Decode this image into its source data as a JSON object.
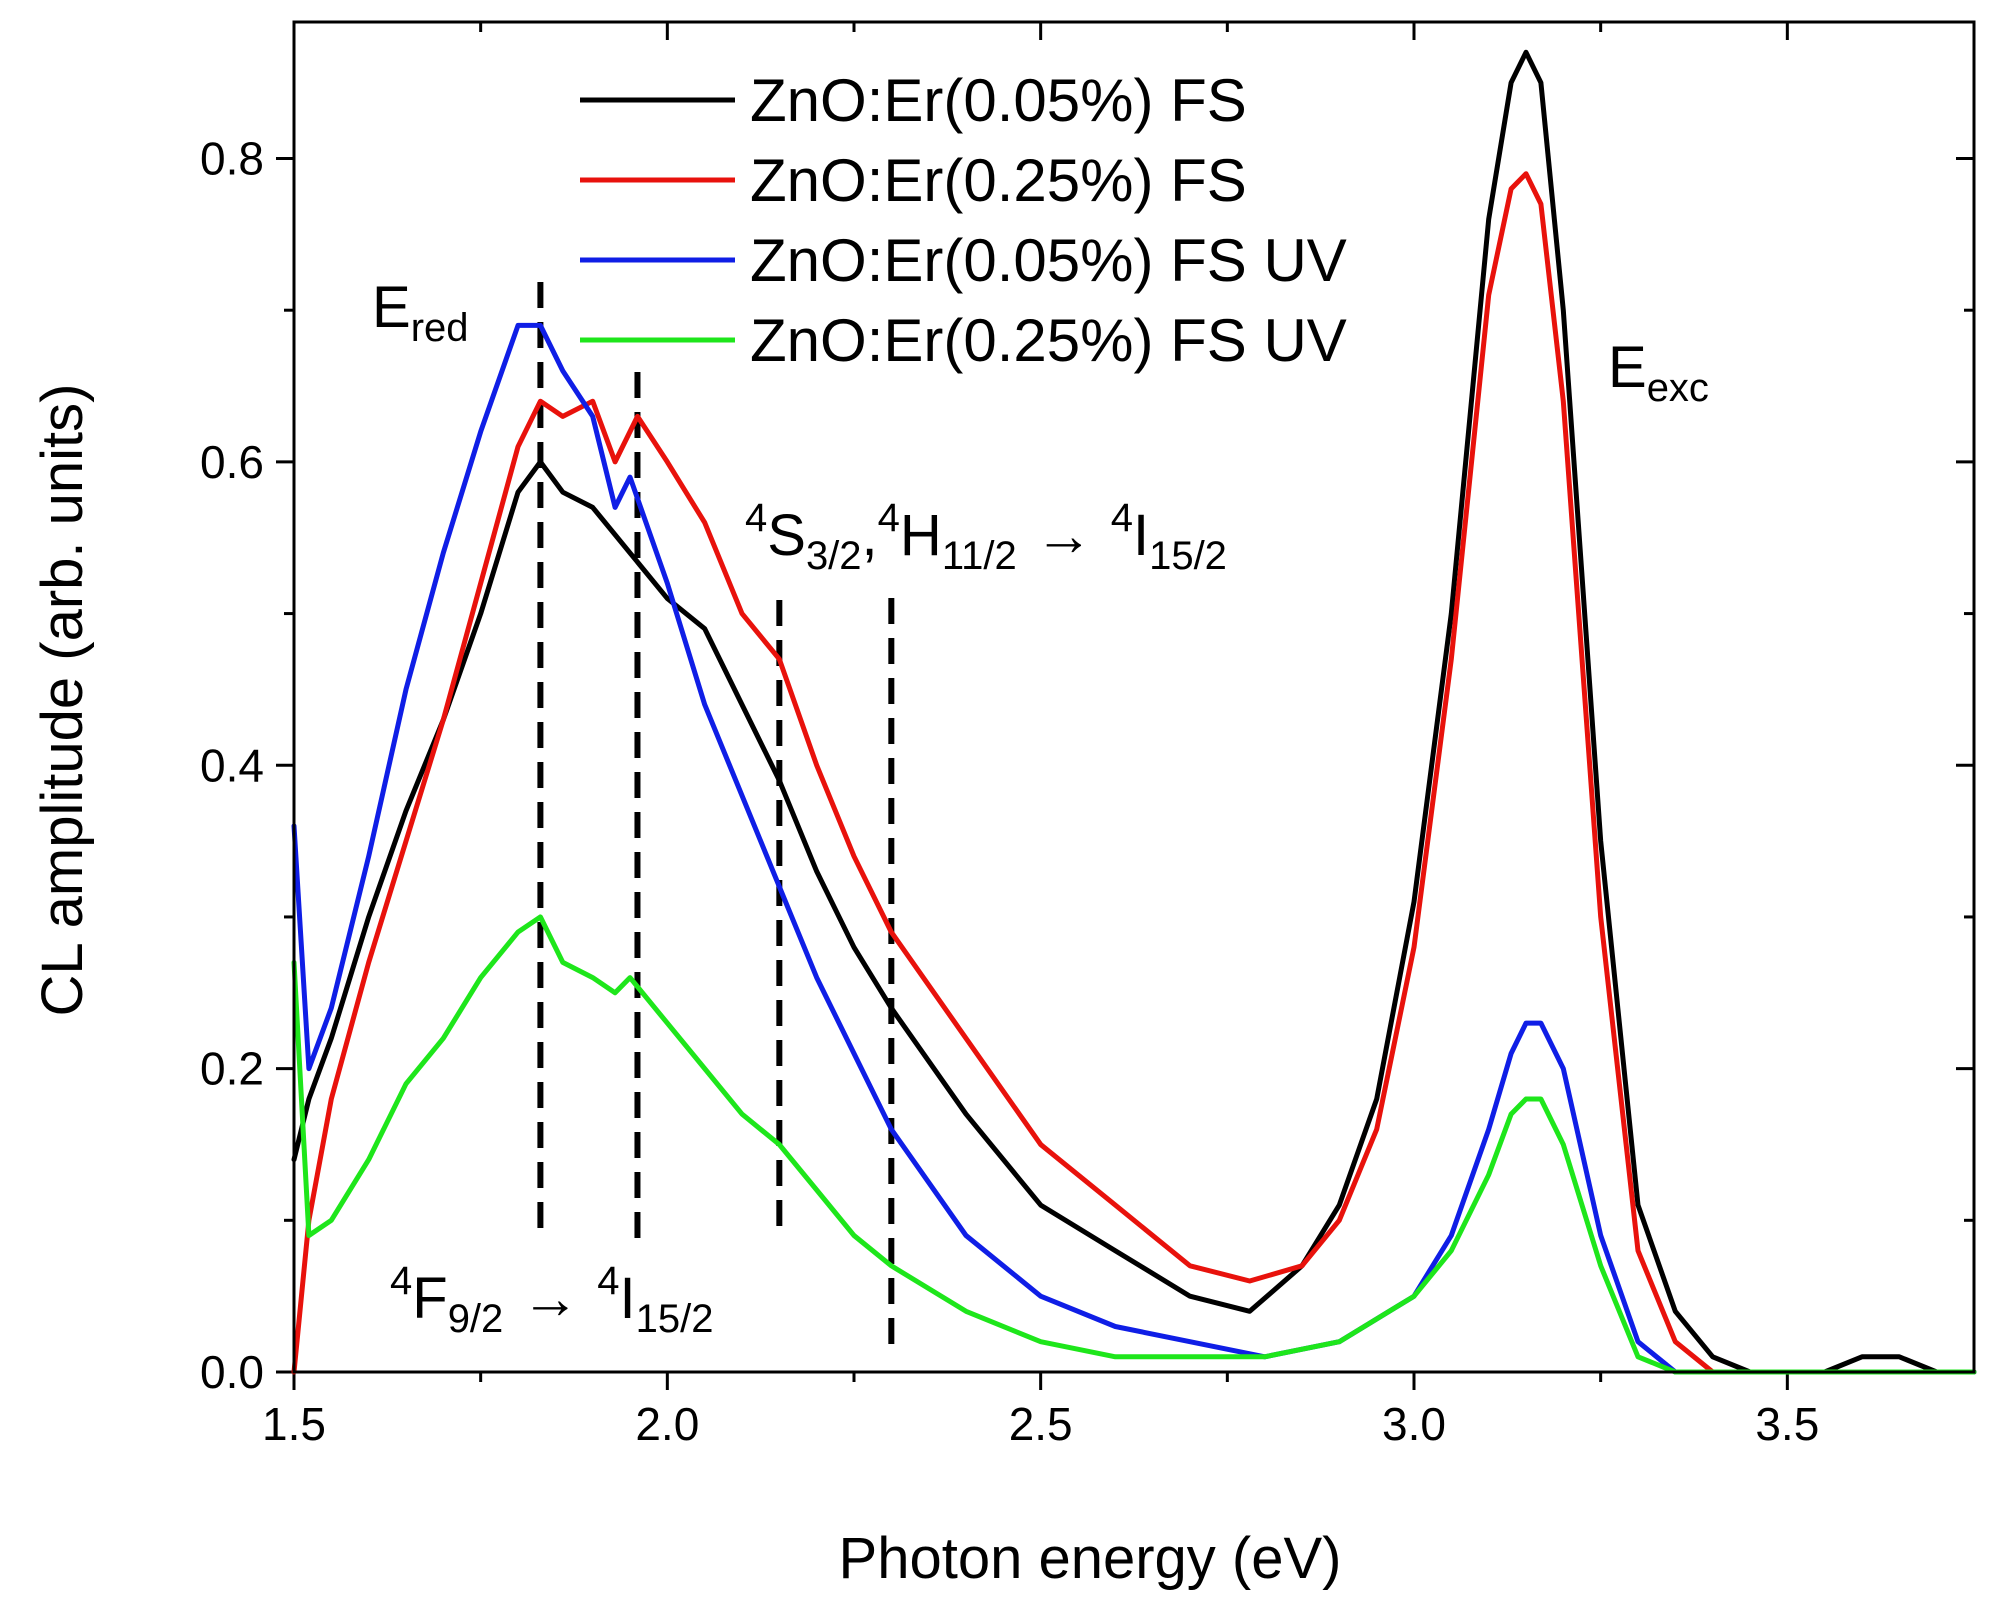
{
  "chart_data": {
    "type": "line",
    "xlabel": "Photon energy (eV)",
    "ylabel": "CL amplitude (arb. units)",
    "xlim": [
      1.5,
      3.75
    ],
    "ylim": [
      0.0,
      0.89
    ],
    "x_ticks": [
      1.5,
      2.0,
      2.5,
      3.0,
      3.5
    ],
    "x_tick_labels": [
      "1.5",
      "2.0",
      "2.5",
      "3.0",
      "3.5"
    ],
    "y_ticks": [
      0.0,
      0.2,
      0.4,
      0.6,
      0.8
    ],
    "y_tick_labels": [
      "0.0",
      "0.2",
      "0.4",
      "0.6",
      "0.8"
    ],
    "grid": false,
    "legend_position": "top-center",
    "series": [
      {
        "name": "ZnO:Er(0.05%) FS",
        "color": "#000000",
        "x": [
          1.5,
          1.52,
          1.55,
          1.6,
          1.65,
          1.7,
          1.75,
          1.8,
          1.83,
          1.86,
          1.9,
          1.95,
          2.0,
          2.05,
          2.1,
          2.15,
          2.2,
          2.25,
          2.3,
          2.4,
          2.5,
          2.6,
          2.7,
          2.78,
          2.85,
          2.9,
          2.95,
          3.0,
          3.05,
          3.1,
          3.13,
          3.15,
          3.17,
          3.2,
          3.25,
          3.3,
          3.35,
          3.4,
          3.45,
          3.5,
          3.55,
          3.6,
          3.65,
          3.7,
          3.75
        ],
        "values": [
          0.14,
          0.18,
          0.22,
          0.3,
          0.37,
          0.43,
          0.5,
          0.58,
          0.6,
          0.58,
          0.57,
          0.54,
          0.51,
          0.49,
          0.44,
          0.39,
          0.33,
          0.28,
          0.24,
          0.17,
          0.11,
          0.08,
          0.05,
          0.04,
          0.07,
          0.11,
          0.18,
          0.31,
          0.5,
          0.76,
          0.85,
          0.87,
          0.85,
          0.7,
          0.35,
          0.11,
          0.04,
          0.01,
          0.0,
          0.0,
          0.0,
          0.01,
          0.01,
          0.0,
          0.0
        ]
      },
      {
        "name": "ZnO:Er(0.25%) FS",
        "color": "#e8120c",
        "x": [
          1.5,
          1.52,
          1.55,
          1.6,
          1.65,
          1.7,
          1.75,
          1.8,
          1.83,
          1.86,
          1.9,
          1.93,
          1.96,
          2.0,
          2.05,
          2.1,
          2.15,
          2.2,
          2.25,
          2.3,
          2.4,
          2.5,
          2.6,
          2.7,
          2.78,
          2.85,
          2.9,
          2.95,
          3.0,
          3.05,
          3.1,
          3.13,
          3.15,
          3.17,
          3.2,
          3.25,
          3.3,
          3.35,
          3.4,
          3.45,
          3.5,
          3.55,
          3.6,
          3.65,
          3.7,
          3.75
        ],
        "values": [
          0.0,
          0.1,
          0.18,
          0.27,
          0.35,
          0.43,
          0.52,
          0.61,
          0.64,
          0.63,
          0.64,
          0.6,
          0.63,
          0.6,
          0.56,
          0.5,
          0.47,
          0.4,
          0.34,
          0.29,
          0.22,
          0.15,
          0.11,
          0.07,
          0.06,
          0.07,
          0.1,
          0.16,
          0.28,
          0.47,
          0.71,
          0.78,
          0.79,
          0.77,
          0.64,
          0.3,
          0.08,
          0.02,
          0.0,
          0.0,
          0.0,
          0.0,
          0.0,
          0.0,
          0.0,
          0.0
        ]
      },
      {
        "name": "ZnO:Er(0.05%) FS UV",
        "color": "#0f1ee6",
        "x": [
          1.5,
          1.52,
          1.55,
          1.6,
          1.65,
          1.7,
          1.75,
          1.8,
          1.83,
          1.86,
          1.9,
          1.93,
          1.95,
          2.0,
          2.05,
          2.1,
          2.15,
          2.2,
          2.25,
          2.3,
          2.4,
          2.5,
          2.6,
          2.7,
          2.8,
          2.9,
          3.0,
          3.05,
          3.1,
          3.13,
          3.15,
          3.17,
          3.2,
          3.25,
          3.3,
          3.35,
          3.4,
          3.5,
          3.6,
          3.7,
          3.75
        ],
        "values": [
          0.36,
          0.2,
          0.24,
          0.34,
          0.45,
          0.54,
          0.62,
          0.69,
          0.69,
          0.66,
          0.63,
          0.57,
          0.59,
          0.52,
          0.44,
          0.38,
          0.32,
          0.26,
          0.21,
          0.16,
          0.09,
          0.05,
          0.03,
          0.02,
          0.01,
          0.02,
          0.05,
          0.09,
          0.16,
          0.21,
          0.23,
          0.23,
          0.2,
          0.09,
          0.02,
          0.0,
          0.0,
          0.0,
          0.0,
          0.0,
          0.0
        ]
      },
      {
        "name": "ZnO:Er(0.25%) FS UV",
        "color": "#1ee61b",
        "x": [
          1.5,
          1.52,
          1.55,
          1.6,
          1.65,
          1.7,
          1.75,
          1.8,
          1.83,
          1.86,
          1.9,
          1.93,
          1.95,
          2.0,
          2.05,
          2.1,
          2.15,
          2.2,
          2.25,
          2.3,
          2.4,
          2.5,
          2.6,
          2.7,
          2.8,
          2.9,
          3.0,
          3.05,
          3.1,
          3.13,
          3.15,
          3.17,
          3.2,
          3.25,
          3.3,
          3.35,
          3.4,
          3.5,
          3.6,
          3.7,
          3.75
        ],
        "values": [
          0.27,
          0.09,
          0.1,
          0.14,
          0.19,
          0.22,
          0.26,
          0.29,
          0.3,
          0.27,
          0.26,
          0.25,
          0.26,
          0.23,
          0.2,
          0.17,
          0.15,
          0.12,
          0.09,
          0.07,
          0.04,
          0.02,
          0.01,
          0.01,
          0.01,
          0.02,
          0.05,
          0.08,
          0.13,
          0.17,
          0.18,
          0.18,
          0.15,
          0.07,
          0.01,
          0.0,
          0.0,
          0.0,
          0.0,
          0.0,
          0.0
        ]
      }
    ],
    "reference_lines": [
      1.83,
      1.96,
      2.15,
      2.3
    ],
    "annotations": {
      "e_red": {
        "main": "E",
        "sub": "red"
      },
      "e_exc": {
        "main": "E",
        "sub": "exc"
      },
      "transition_upper": {
        "s1": "4",
        "p1": "S",
        "b1": "3/2",
        "comma": ",",
        "s2": "4",
        "p2": "H",
        "b2": "11/2",
        "arrow": "→",
        "s3": "4",
        "p3": "I",
        "b3": "15/2"
      },
      "transition_lower": {
        "s1": "4",
        "p1": "F",
        "b1": "9/2",
        "arrow": "→",
        "s2": "4",
        "p2": "I",
        "b2": "15/2"
      }
    }
  }
}
